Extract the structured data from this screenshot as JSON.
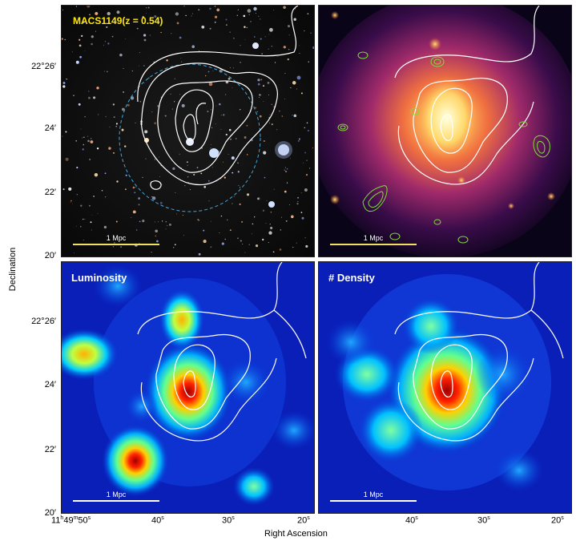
{
  "panels": {
    "p1": {
      "title": "MACS1149(z = 0.54)",
      "scale": "1 Mpc"
    },
    "p2": {
      "title": "",
      "scale": "1 Mpc"
    },
    "p3": {
      "title": "Luminosity",
      "scale": "1 Mpc"
    },
    "p4": {
      "title": "# Density",
      "scale": "1 Mpc"
    }
  },
  "axes": {
    "ylabel": "Declination",
    "xlabel": "Right Ascension",
    "dec_top": [
      "22°26′",
      "24′",
      "22′",
      "20′"
    ],
    "dec_bottom": [
      "22°26′",
      "24′",
      "22′",
      "20′"
    ],
    "ra_left": [
      "11h49m50s",
      "40s",
      "30s",
      "20s"
    ],
    "ra_right": [
      "40s",
      "30s",
      "20s"
    ]
  },
  "colors": {
    "title_yellow": "#ffe600",
    "contour_white": "#ffffff",
    "contour_green": "#7fdc3a",
    "circle_dashed": "#3fa8e0"
  }
}
